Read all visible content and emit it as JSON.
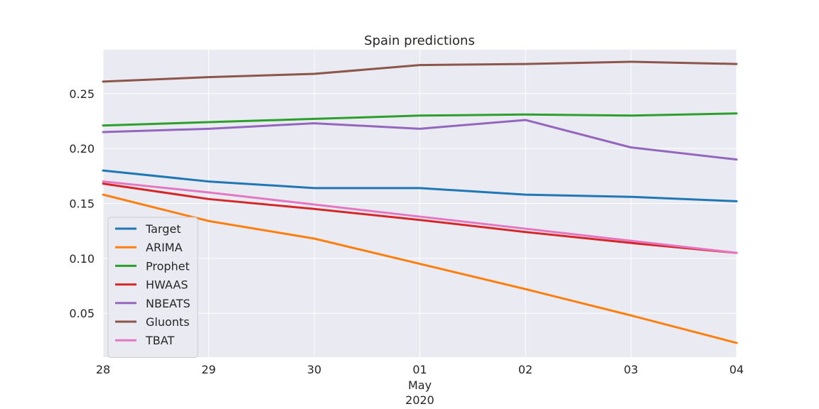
{
  "chart_data": {
    "type": "line",
    "title": "Spain predictions",
    "xlabel": "",
    "ylabel": "",
    "x": [
      "2020-04-28",
      "2020-04-29",
      "2020-04-30",
      "2020-05-01",
      "2020-05-02",
      "2020-05-03",
      "2020-05-04"
    ],
    "x_tick_labels": [
      "28",
      "29",
      "30",
      "01",
      "02",
      "03",
      "04"
    ],
    "x_secondary_label": {
      "month": "May",
      "year": "2020"
    },
    "ylim": [
      0.01,
      0.29
    ],
    "y_ticks": [
      0.05,
      0.1,
      0.15,
      0.2,
      0.25
    ],
    "y_tick_labels": [
      "0.05",
      "0.10",
      "0.15",
      "0.20",
      "0.25"
    ],
    "grid": true,
    "legend_position": "lower-left",
    "background": "#eaeaf2",
    "series": [
      {
        "name": "Target",
        "color": "#1f77b4",
        "values": [
          0.18,
          0.17,
          0.164,
          0.164,
          0.158,
          0.156,
          0.152
        ]
      },
      {
        "name": "ARIMA",
        "color": "#ff7f0e",
        "values": [
          0.158,
          0.134,
          0.118,
          0.095,
          0.072,
          0.048,
          0.023
        ]
      },
      {
        "name": "Prophet",
        "color": "#2ca02c",
        "values": [
          0.221,
          0.224,
          0.227,
          0.23,
          0.231,
          0.23,
          0.232
        ]
      },
      {
        "name": "HWAAS",
        "color": "#d62728",
        "values": [
          0.168,
          0.154,
          0.145,
          0.135,
          0.124,
          0.114,
          0.105
        ]
      },
      {
        "name": "NBEATS",
        "color": "#9467bd",
        "values": [
          0.215,
          0.218,
          0.223,
          0.218,
          0.226,
          0.201,
          0.19
        ]
      },
      {
        "name": "Gluonts",
        "color": "#8c564b",
        "values": [
          0.261,
          0.265,
          0.268,
          0.276,
          0.277,
          0.279,
          0.277
        ]
      },
      {
        "name": "TBAT",
        "color": "#e377c2",
        "values": [
          0.17,
          0.16,
          0.149,
          0.138,
          0.127,
          0.116,
          0.105
        ]
      }
    ]
  }
}
